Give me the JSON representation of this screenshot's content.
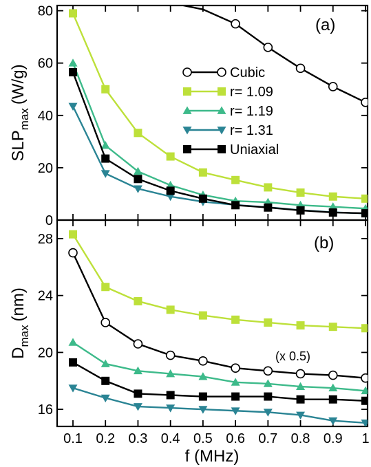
{
  "chart_data": [
    {
      "type": "line",
      "panel_label": "(a)",
      "ylabel": "SLP",
      "ylabel_sub": "max",
      "ylabel_unit": "(W/g)",
      "xlabel": "",
      "ylim": [
        0,
        82
      ],
      "yticks": [
        0,
        20,
        40,
        60,
        80
      ],
      "x": [
        0.1,
        0.2,
        0.3,
        0.4,
        0.5,
        0.6,
        0.7,
        0.8,
        0.9,
        1.0
      ],
      "legend_position": "center-right",
      "series": [
        {
          "name": "Cubic",
          "marker": "circle-open",
          "color": "#000000",
          "values": [
            null,
            null,
            null,
            null,
            null,
            75,
            66,
            58,
            51,
            45
          ],
          "lead_in": [
            [
              0.44,
              82
            ],
            [
              0.5,
              80.5
            ]
          ]
        },
        {
          "name": "r= 1.09",
          "marker": "square",
          "color": "#bde03a",
          "values": [
            79,
            50,
            33.3,
            24.3,
            18.2,
            15.3,
            12.5,
            10.5,
            9,
            8.2
          ]
        },
        {
          "name": "r= 1.19",
          "marker": "triangle-up",
          "color": "#3dba8a",
          "values": [
            60,
            28.5,
            18.6,
            13.3,
            9.6,
            7.3,
            6.8,
            5.7,
            5.1,
            4.4
          ]
        },
        {
          "name": "r= 1.31",
          "marker": "triangle-down",
          "color": "#2a8494",
          "values": [
            43.5,
            17.8,
            12,
            9,
            7,
            5.8,
            4.9,
            3.8,
            3.0,
            2.5
          ]
        },
        {
          "name": "Uniaxial",
          "marker": "square",
          "color": "#000000",
          "values": [
            56.5,
            23.5,
            15.7,
            11.2,
            8.2,
            5.7,
            4.8,
            3.7,
            2.9,
            2.6
          ]
        }
      ]
    },
    {
      "type": "line",
      "panel_label": "(b)",
      "ylabel": "D",
      "ylabel_sub": "max",
      "ylabel_unit": "(nm)",
      "xlabel": "f (MHz)",
      "ylim": [
        14.8,
        29.3
      ],
      "yticks": [
        16,
        20,
        24,
        28
      ],
      "xticks": [
        "0.1",
        "0.2",
        "0.3",
        "0.4",
        "0.5",
        "0.6",
        "0.7",
        "0.8",
        "0.9",
        "1"
      ],
      "x": [
        0.1,
        0.2,
        0.3,
        0.4,
        0.5,
        0.6,
        0.7,
        0.8,
        0.9,
        1.0
      ],
      "annotation": "(x 0.5)",
      "series": [
        {
          "name": "Cubic",
          "marker": "circle-open",
          "color": "#000000",
          "values": [
            27,
            22.1,
            20.6,
            19.8,
            19.4,
            18.9,
            18.7,
            18.5,
            18.4,
            18.2
          ]
        },
        {
          "name": "r= 1.09",
          "marker": "square",
          "color": "#bde03a",
          "values": [
            28.3,
            24.6,
            23.6,
            23.0,
            22.6,
            22.3,
            22.1,
            21.9,
            21.8,
            21.7
          ]
        },
        {
          "name": "r= 1.19",
          "marker": "triangle-up",
          "color": "#3dba8a",
          "values": [
            20.7,
            19.2,
            18.7,
            18.5,
            18.3,
            17.9,
            17.8,
            17.6,
            17.5,
            17.3
          ]
        },
        {
          "name": "r= 1.31",
          "marker": "triangle-down",
          "color": "#2a8494",
          "values": [
            17.5,
            16.8,
            16.2,
            16.1,
            16.0,
            15.9,
            15.8,
            15.6,
            15.2,
            15.05
          ]
        },
        {
          "name": "Uniaxial",
          "marker": "square",
          "color": "#000000",
          "values": [
            19.3,
            18.0,
            17.1,
            17.0,
            16.9,
            16.9,
            16.9,
            16.7,
            16.7,
            16.6
          ]
        }
      ]
    }
  ]
}
